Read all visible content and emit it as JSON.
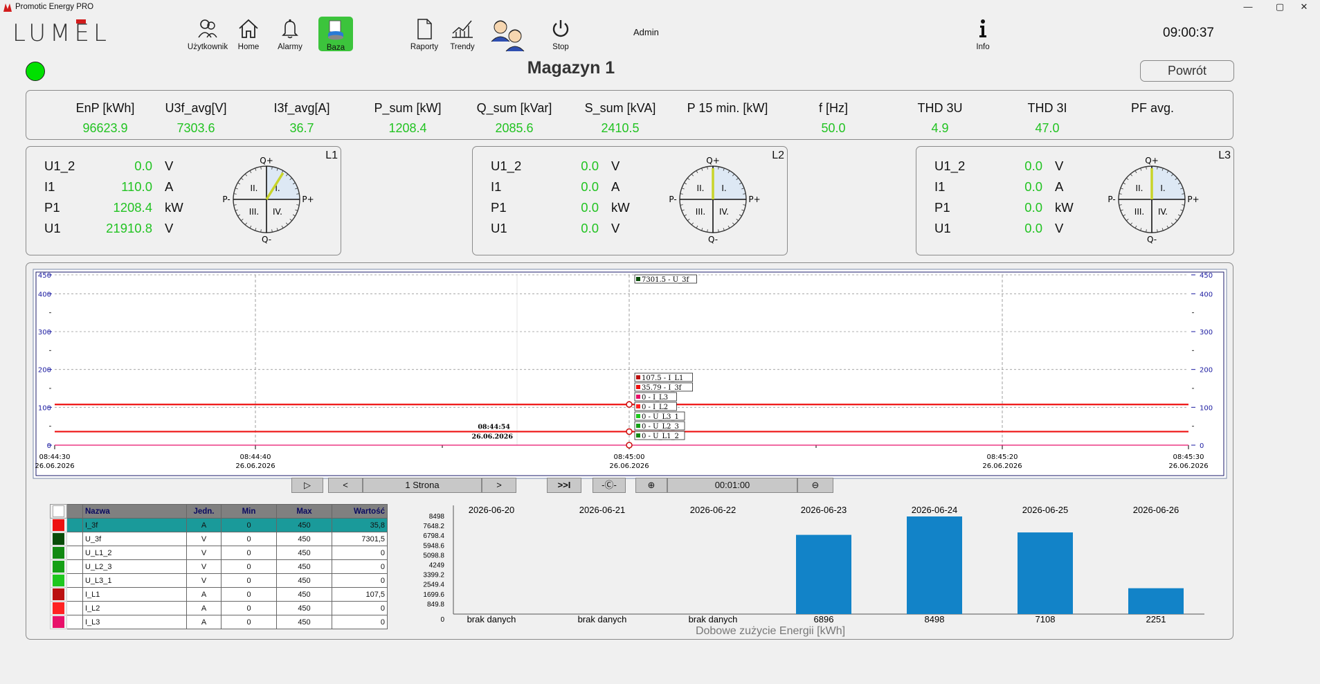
{
  "app": {
    "title": "Promotic Energy PRO",
    "logo_text": "LUMEL"
  },
  "window_controls": {
    "minimize": "—",
    "maximize": "▢",
    "close": "✕"
  },
  "toolbar": {
    "user": "Użytkownik",
    "home": "Home",
    "alarms": "Alarmy",
    "db": "Baza",
    "reports": "Raporty",
    "trends": "Trendy",
    "stop": "Stop",
    "info": "Info",
    "admin": "Admin",
    "clock": "09:00:37"
  },
  "page": {
    "title": "Magazyn 1",
    "back_button": "Powrót",
    "status_color": "#00e000"
  },
  "summary": {
    "headers": [
      "EnP [kWh]",
      "U3f_avg[V]",
      "I3f_avg[A]",
      "P_sum [kW]",
      "Q_sum [kVar]",
      "S_sum [kVA]",
      "P 15 min. [kW]",
      "f [Hz]",
      "THD 3U",
      "THD 3I",
      "PF avg."
    ],
    "values": [
      "96623.9",
      "7303.6",
      "36.7",
      "1208.4",
      "2085.6",
      "2410.5",
      "",
      "50.0",
      "4.9",
      "47.0",
      ""
    ]
  },
  "phases": [
    {
      "name": "L1",
      "rows": [
        {
          "label": "U1_2",
          "value": "0.0",
          "unit": "V"
        },
        {
          "label": "I1",
          "value": "110.0",
          "unit": "A"
        },
        {
          "label": "P1",
          "value": "1208.4",
          "unit": "kW"
        },
        {
          "label": "U1",
          "value": "21910.8",
          "unit": "V"
        }
      ]
    },
    {
      "name": "L2",
      "rows": [
        {
          "label": "U1_2",
          "value": "0.0",
          "unit": "V"
        },
        {
          "label": "I1",
          "value": "0.0",
          "unit": "A"
        },
        {
          "label": "P1",
          "value": "0.0",
          "unit": "kW"
        },
        {
          "label": "U1",
          "value": "0.0",
          "unit": "V"
        }
      ]
    },
    {
      "name": "L3",
      "rows": [
        {
          "label": "U1_2",
          "value": "0.0",
          "unit": "V"
        },
        {
          "label": "I1",
          "value": "0.0",
          "unit": "A"
        },
        {
          "label": "P1",
          "value": "0.0",
          "unit": "kW"
        },
        {
          "label": "U1",
          "value": "0.0",
          "unit": "V"
        }
      ]
    }
  ],
  "dial_labels": {
    "q_plus": "Q+",
    "q_minus": "Q-",
    "p_plus": "P+",
    "p_minus": "P-",
    "q1": "I.",
    "q2": "II.",
    "q3": "III.",
    "q4": "IV."
  },
  "trend_chart": {
    "y_ticks": [
      "0",
      "100",
      "200",
      "300",
      "400",
      "450"
    ],
    "x_ticks": [
      {
        "time": "08:44:30",
        "date": "26.06.2026"
      },
      {
        "time": "08:44:40",
        "date": "26.06.2026"
      },
      {
        "time": "08:45:00",
        "date": "26.06.2026"
      },
      {
        "time": "08:45:20",
        "date": "26.06.2026"
      },
      {
        "time": "08:45:30",
        "date": "26.06.2026"
      }
    ],
    "cursor_time": "08:44:54",
    "cursor_date": "26.06.2026",
    "tooltips": [
      "7301.5 - U_3f",
      "107.5 - I_L1",
      "35.79 - I_3f",
      "0 - I_L3",
      "0 - I_L2",
      "0 - U_L3_1",
      "0 - U_L2_3",
      "0 - U_L1_2"
    ]
  },
  "nav": {
    "play": "▷",
    "prev": "<",
    "page": "1 Strona",
    "next": ">",
    "end": ">>I",
    "reset": "-Ⓒ-",
    "zoom_in": "⊕",
    "range": "00:01:00",
    "zoom_out": "⊖"
  },
  "legend": {
    "headers": [
      "Nazwa",
      "Jedn.",
      "Min",
      "Max",
      "Wartość"
    ],
    "rows": [
      {
        "color": "#ee1111",
        "name": "I_3f",
        "unit": "A",
        "min": "0",
        "max": "450",
        "value": "35,8"
      },
      {
        "color": "#0a4d0a",
        "name": "U_3f",
        "unit": "V",
        "min": "0",
        "max": "450",
        "value": "7301,5"
      },
      {
        "color": "#138a13",
        "name": "U_L1_2",
        "unit": "V",
        "min": "0",
        "max": "450",
        "value": "0"
      },
      {
        "color": "#16a016",
        "name": "U_L2_3",
        "unit": "V",
        "min": "0",
        "max": "450",
        "value": "0"
      },
      {
        "color": "#1ec81e",
        "name": "U_L3_1",
        "unit": "V",
        "min": "0",
        "max": "450",
        "value": "0"
      },
      {
        "color": "#bb1111",
        "name": "I_L1",
        "unit": "A",
        "min": "0",
        "max": "450",
        "value": "107,5"
      },
      {
        "color": "#ff2222",
        "name": "I_L2",
        "unit": "A",
        "min": "0",
        "max": "450",
        "value": "0"
      },
      {
        "color": "#e8116a",
        "name": "I_L3",
        "unit": "A",
        "min": "0",
        "max": "450",
        "value": "0"
      }
    ]
  },
  "chart_data": {
    "type": "bar",
    "title": "Dobowe zużycie Energii [kWh]",
    "categories": [
      "2026-06-20",
      "2026-06-21",
      "2026-06-22",
      "2026-06-23",
      "2026-06-24",
      "2026-06-25",
      "2026-06-26"
    ],
    "values": [
      null,
      null,
      null,
      6896,
      8498,
      7108,
      2251
    ],
    "value_labels": [
      "brak danych",
      "brak danych",
      "brak danych",
      "6896",
      "8498",
      "7108",
      "2251"
    ],
    "y_ticks": [
      "0",
      "849.8",
      "1699.6",
      "2549.4",
      "3399.2",
      "4249",
      "5098.8",
      "5948.6",
      "6798.4",
      "7648.2",
      "8498"
    ],
    "ylim": [
      0,
      8498
    ],
    "bar_color": "#1283c8"
  },
  "colors": {
    "green_value": "#22c322",
    "trend_red": "#ee1111",
    "highlight_row": "#1a9a9a"
  }
}
